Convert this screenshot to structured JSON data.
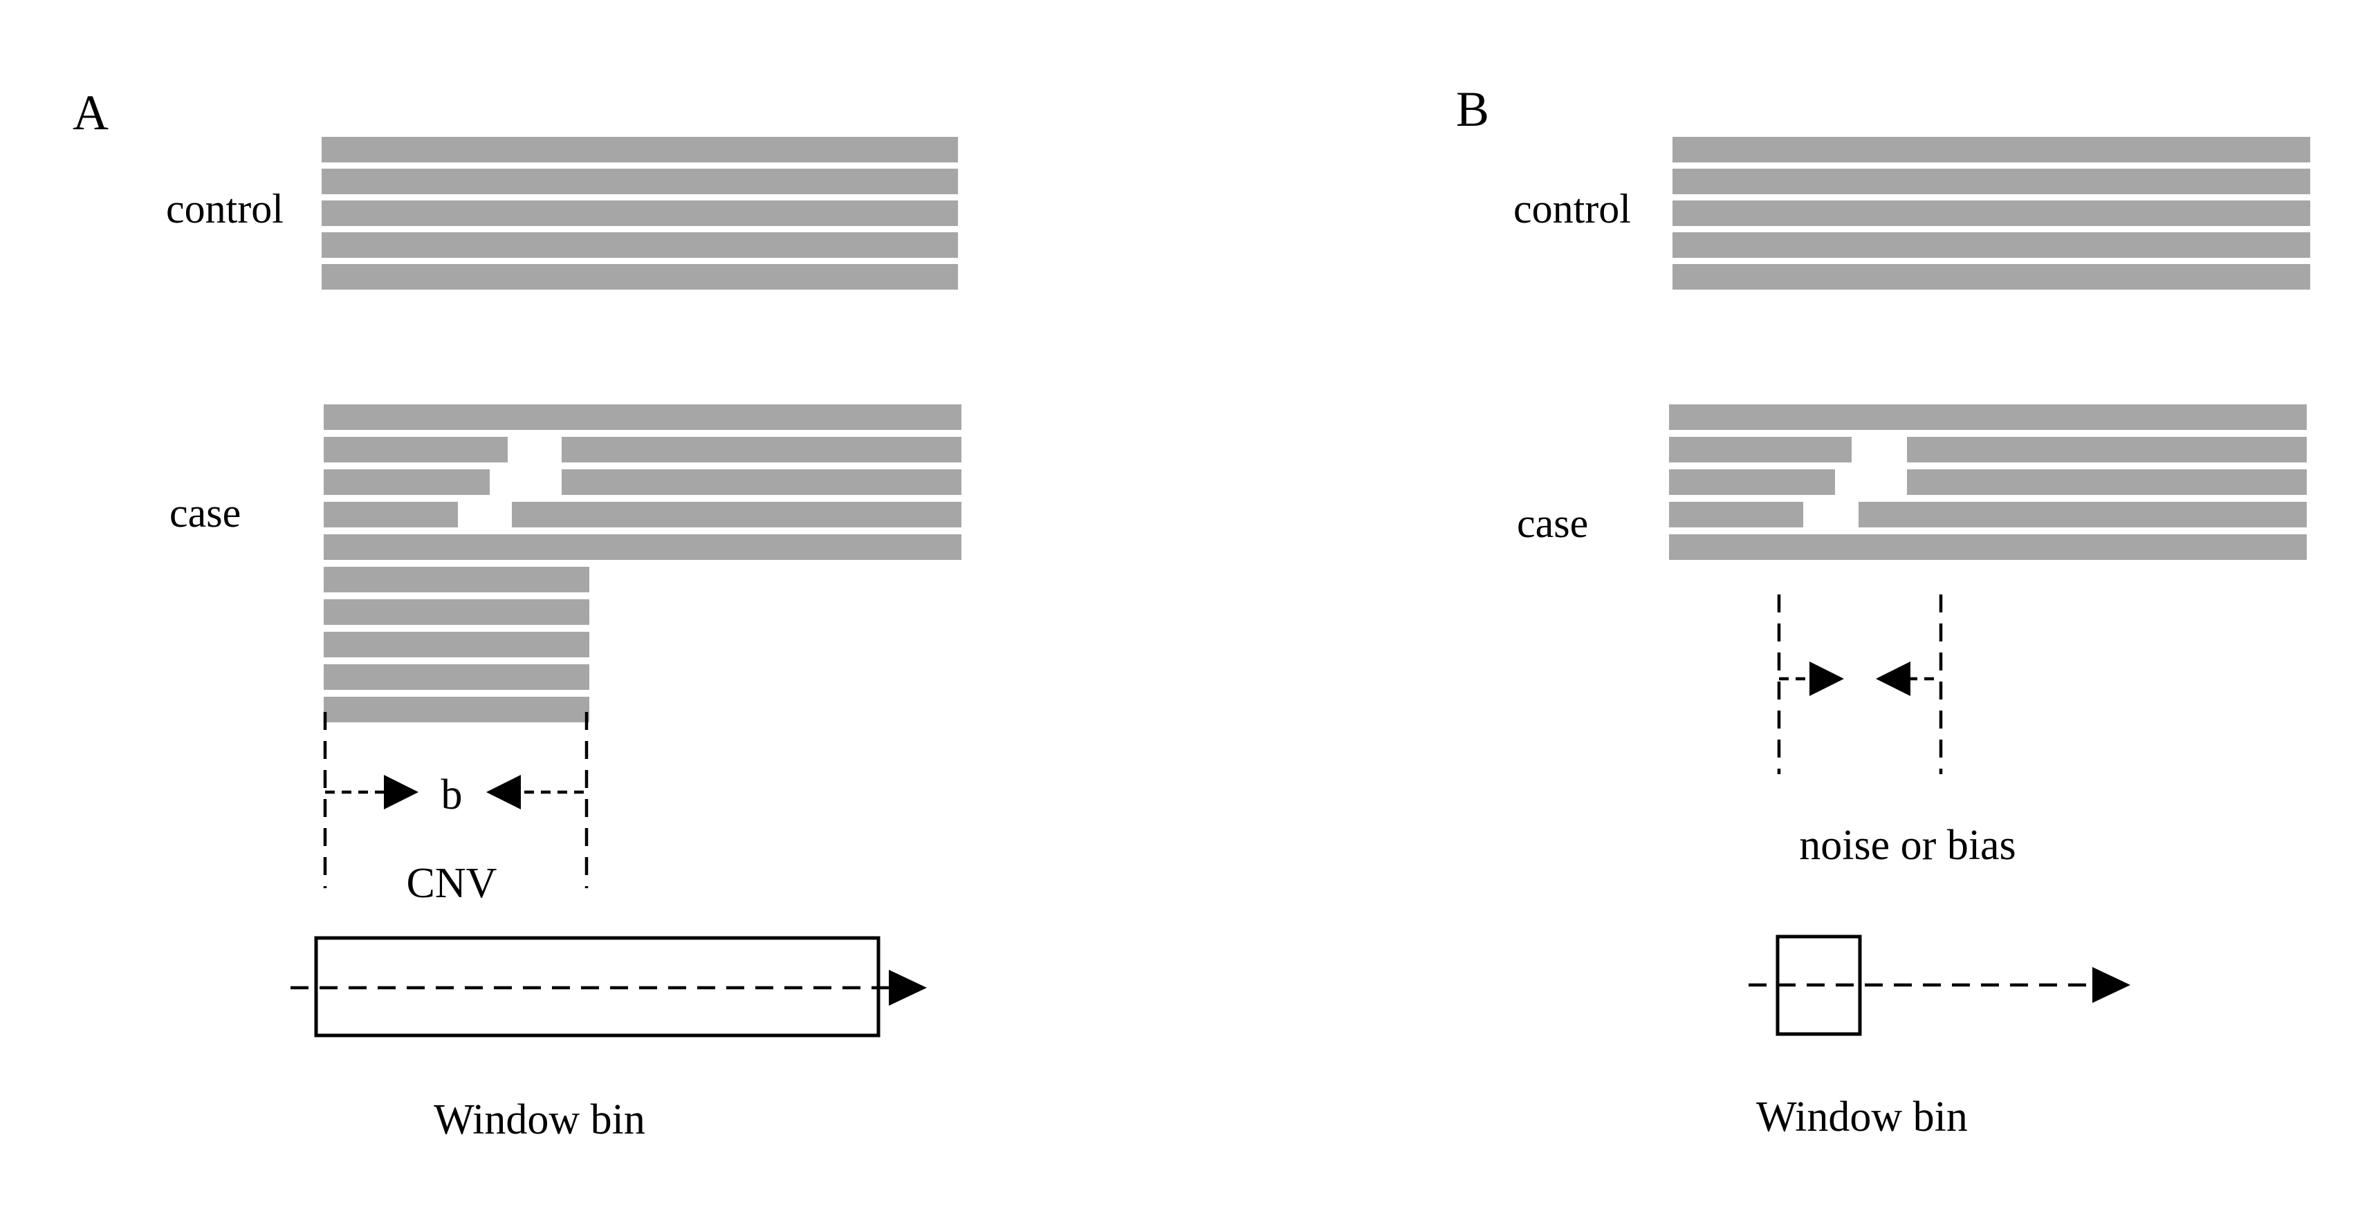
{
  "panels": {
    "a": {
      "label": "A",
      "control_label": "control",
      "case_label": "case",
      "span_label": "b",
      "cnv_label": "CNV",
      "window_label": "Window bin"
    },
    "b": {
      "label": "B",
      "control_label": "control",
      "case_label": "case",
      "noise_label": "noise or bias",
      "window_label": "Window bin"
    }
  },
  "colors": {
    "read": "#a6a6a6",
    "line": "#000000",
    "background": "#ffffff"
  }
}
